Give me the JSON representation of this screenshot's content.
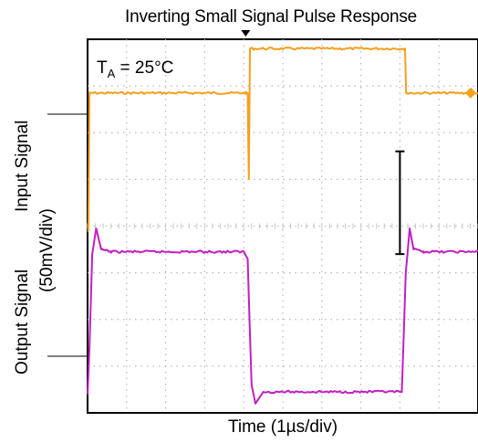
{
  "chart_data": {
    "type": "line",
    "title": "Inverting Small Signal Pulse Response",
    "xlabel": "Time (1µs/div)",
    "ylabel_input": "Input Signal",
    "ylabel_output": "Output Signal",
    "ylabel_units": "(50mV/div)",
    "annotation": {
      "base": "T",
      "sub": "A",
      "rest": " = 25°C"
    },
    "grid": true,
    "x_divisions": 10,
    "y_divisions": 8,
    "xlim": [
      0,
      10
    ],
    "series": [
      {
        "name": "Input Signal",
        "color": "#f5a01e",
        "x": [
          0.0,
          0.02,
          0.05,
          4.05,
          4.1,
          4.13,
          4.16,
          8.1,
          8.13,
          8.16,
          8.25,
          10.0
        ],
        "y": [
          3.9,
          3.9,
          6.85,
          6.85,
          6.85,
          5.0,
          7.8,
          7.8,
          7.8,
          6.85,
          6.85,
          6.85
        ]
      },
      {
        "name": "Output Signal",
        "color": "#c21fc2",
        "x": [
          0.0,
          0.05,
          0.12,
          0.22,
          0.35,
          0.6,
          4.0,
          4.1,
          4.2,
          4.3,
          4.5,
          8.05,
          8.15,
          8.25,
          8.35,
          8.6,
          10.0
        ],
        "y": [
          0.4,
          1.4,
          3.4,
          3.95,
          3.5,
          3.45,
          3.45,
          3.3,
          0.6,
          0.2,
          0.45,
          0.45,
          3.0,
          3.95,
          3.5,
          3.45,
          3.45
        ]
      }
    ],
    "cursor_note": "vertical I-beam marker near x=8.0 on Input trace"
  }
}
